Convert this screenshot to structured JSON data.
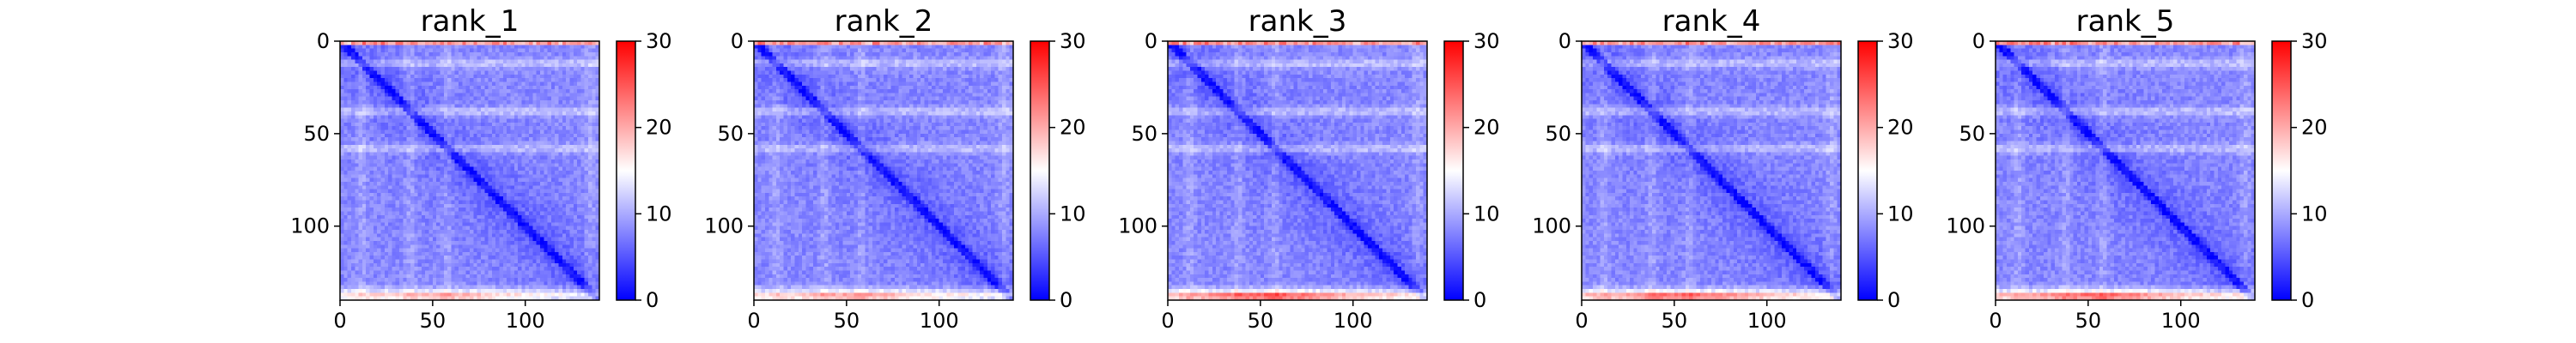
{
  "chart_data": [
    {
      "type": "heatmap",
      "title": "rank_1",
      "matrix_size": 140,
      "x_ticks": [
        0,
        50,
        100
      ],
      "y_ticks": [
        0,
        50,
        100
      ],
      "colorbar": {
        "min": 0,
        "max": 30,
        "ticks": [
          0,
          10,
          20,
          30
        ],
        "colormap": [
          "#0000ff",
          "#ffffff",
          "#ff0000"
        ],
        "center": 15
      },
      "pattern": {
        "diagonal": 1,
        "near_diagonal": 5,
        "background": 8,
        "bright_bands_y": [
          12,
          38,
          58,
          135
        ],
        "bottom_edge_peak": 20
      }
    },
    {
      "type": "heatmap",
      "title": "rank_2",
      "matrix_size": 140,
      "x_ticks": [
        0,
        50,
        100
      ],
      "y_ticks": [
        0,
        50,
        100
      ],
      "colorbar": {
        "min": 0,
        "max": 30,
        "ticks": [
          0,
          10,
          20,
          30
        ],
        "colormap": [
          "#0000ff",
          "#ffffff",
          "#ff0000"
        ],
        "center": 15
      },
      "pattern": {
        "diagonal": 1,
        "near_diagonal": 5,
        "background": 8,
        "bright_bands_y": [
          12,
          38,
          58,
          135
        ],
        "bottom_edge_peak": 21
      }
    },
    {
      "type": "heatmap",
      "title": "rank_3",
      "matrix_size": 140,
      "x_ticks": [
        0,
        50,
        100
      ],
      "y_ticks": [
        0,
        50,
        100
      ],
      "colorbar": {
        "min": 0,
        "max": 30,
        "ticks": [
          0,
          10,
          20,
          30
        ],
        "colormap": [
          "#0000ff",
          "#ffffff",
          "#ff0000"
        ],
        "center": 15
      },
      "pattern": {
        "diagonal": 1,
        "near_diagonal": 5,
        "background": 8,
        "bright_bands_y": [
          12,
          38,
          58,
          135
        ],
        "bottom_edge_peak": 26
      }
    },
    {
      "type": "heatmap",
      "title": "rank_4",
      "matrix_size": 140,
      "x_ticks": [
        0,
        50,
        100
      ],
      "y_ticks": [
        0,
        50,
        100
      ],
      "colorbar": {
        "min": 0,
        "max": 30,
        "ticks": [
          0,
          10,
          20,
          30
        ],
        "colormap": [
          "#0000ff",
          "#ffffff",
          "#ff0000"
        ],
        "center": 15
      },
      "pattern": {
        "diagonal": 1,
        "near_diagonal": 5,
        "background": 8,
        "bright_bands_y": [
          12,
          38,
          58,
          135
        ],
        "bottom_edge_peak": 25
      }
    },
    {
      "type": "heatmap",
      "title": "rank_5",
      "matrix_size": 140,
      "x_ticks": [
        0,
        50,
        100
      ],
      "y_ticks": [
        0,
        50,
        100
      ],
      "colorbar": {
        "min": 0,
        "max": 30,
        "ticks": [
          0,
          10,
          20,
          30
        ],
        "colormap": [
          "#0000ff",
          "#ffffff",
          "#ff0000"
        ],
        "center": 15
      },
      "pattern": {
        "diagonal": 1,
        "near_diagonal": 5,
        "background": 8,
        "bright_bands_y": [
          12,
          38,
          58,
          135
        ],
        "bottom_edge_peak": 25
      }
    }
  ]
}
